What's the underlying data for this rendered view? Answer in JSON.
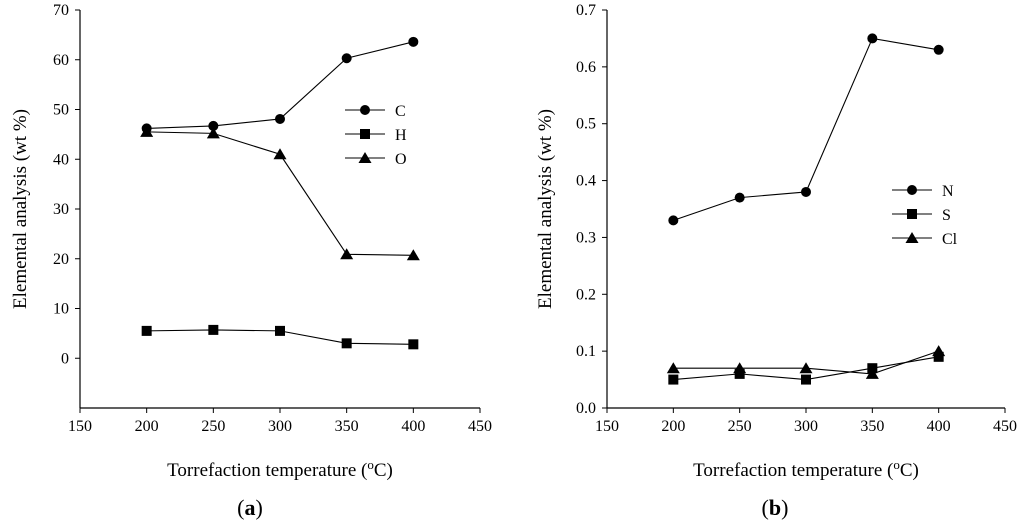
{
  "chart_data": [
    {
      "type": "line",
      "panel_label": "a",
      "xlabel": "Torrefaction temperature (oC)",
      "xlabel_parts": {
        "prefix": "Torrefaction temperature (",
        "superscript": "o",
        "suffix": "C)"
      },
      "ylabel": "Elemental analysis (wt %)",
      "xlim": [
        150,
        450
      ],
      "ylim": [
        -10,
        70
      ],
      "xticks": [
        150,
        200,
        250,
        300,
        350,
        400,
        450
      ],
      "yticks": [
        0,
        10,
        20,
        30,
        40,
        50,
        60,
        70
      ],
      "x": [
        200,
        250,
        300,
        350,
        400
      ],
      "legend_position": "upper-right",
      "series": [
        {
          "name": "C",
          "marker": "circle",
          "values": [
            46.2,
            46.7,
            48.1,
            60.3,
            63.6
          ]
        },
        {
          "name": "H",
          "marker": "square",
          "values": [
            5.5,
            5.7,
            5.5,
            3.0,
            2.8
          ]
        },
        {
          "name": "O",
          "marker": "triangle",
          "values": [
            45.5,
            45.2,
            41.0,
            20.9,
            20.7
          ]
        }
      ]
    },
    {
      "type": "line",
      "panel_label": "b",
      "xlabel": "Torrefaction temperature (oC)",
      "xlabel_parts": {
        "prefix": "Torrefaction temperature (",
        "superscript": "o",
        "suffix": "C)"
      },
      "ylabel": "Elemental analysis (wt %)",
      "xlim": [
        150,
        450
      ],
      "ylim": [
        0,
        0.7
      ],
      "xticks": [
        150,
        200,
        250,
        300,
        350,
        400,
        450
      ],
      "yticks": [
        "0.0",
        "0.1",
        "0.2",
        "0.3",
        "0.4",
        "0.5",
        "0.6",
        "0.7"
      ],
      "x": [
        200,
        250,
        300,
        350,
        400
      ],
      "legend_position": "center-right",
      "series": [
        {
          "name": "N",
          "marker": "circle",
          "values": [
            0.33,
            0.37,
            0.38,
            0.65,
            0.63
          ]
        },
        {
          "name": "S",
          "marker": "square",
          "values": [
            0.05,
            0.06,
            0.05,
            0.07,
            0.09
          ]
        },
        {
          "name": "Cl",
          "marker": "triangle",
          "values": [
            0.07,
            0.07,
            0.07,
            0.06,
            0.1
          ]
        }
      ]
    }
  ]
}
